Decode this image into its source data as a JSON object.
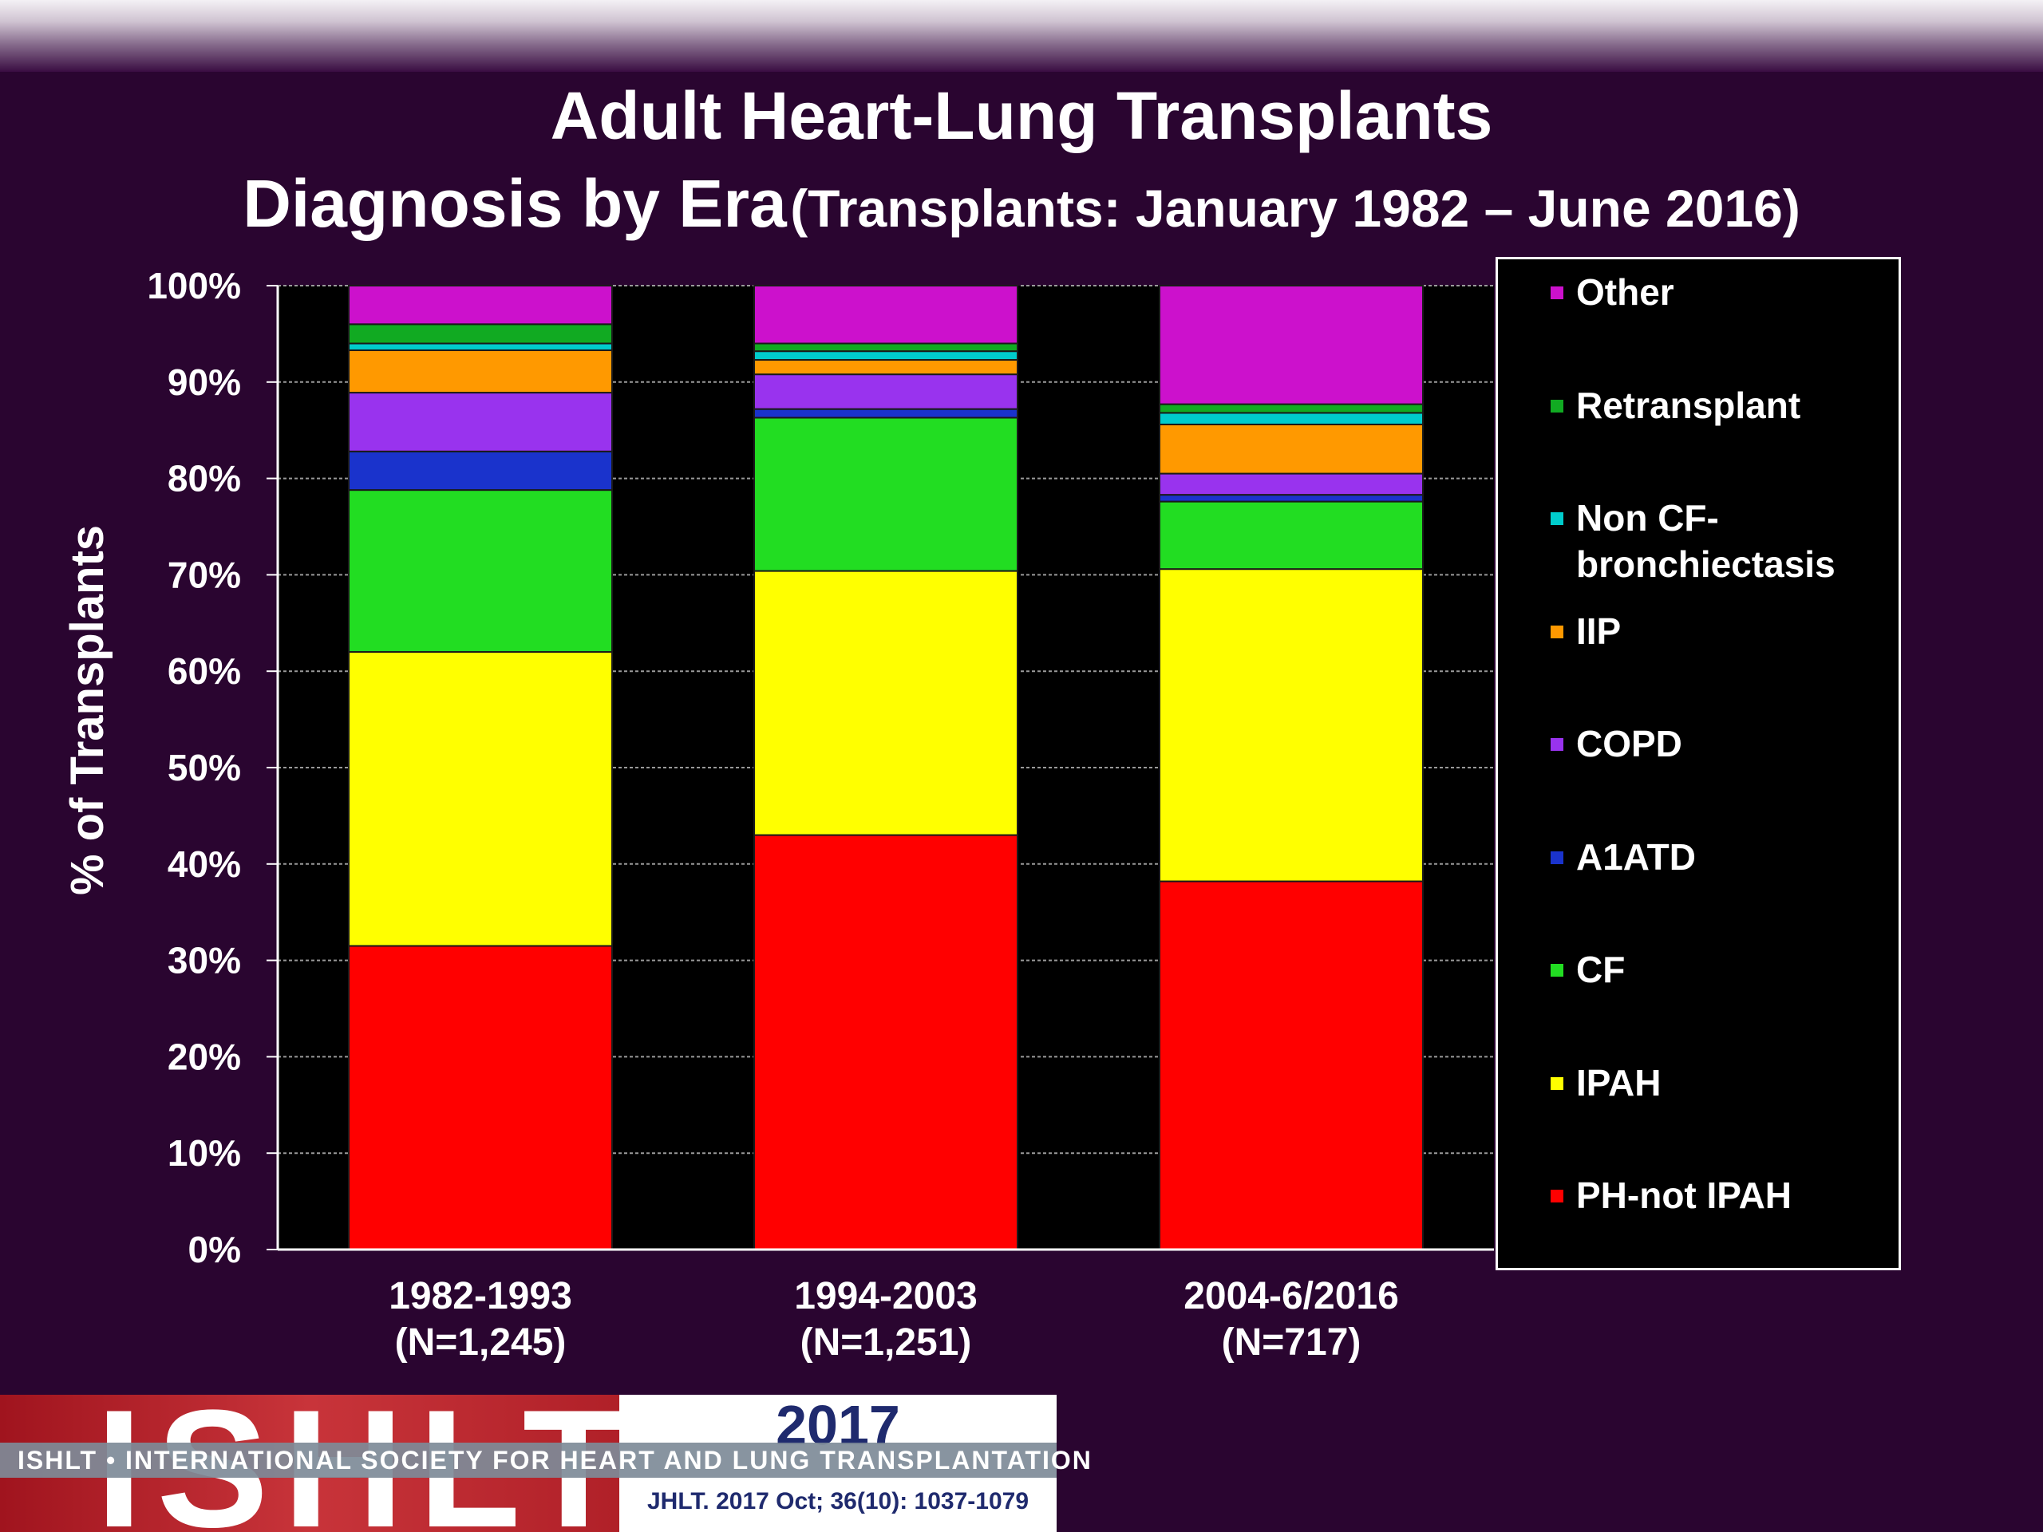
{
  "title_line1": "Adult Heart-Lung Transplants",
  "title_line2_main": "Diagnosis by Era",
  "title_line2_sub": "(Transplants: January 1982 – June 2016)",
  "footer": {
    "logo_text": "ISHLT",
    "year": "2017",
    "band_text": "ISHLT • INTERNATIONAL SOCIETY FOR HEART AND LUNG TRANSPLANTATION",
    "citation": "JHLT. 2017 Oct; 36(10): 1037-1079"
  },
  "chart_data": {
    "type": "bar",
    "stacked": true,
    "ylabel": "% of Transplants",
    "ylim": [
      0,
      100
    ],
    "yticks": [
      "0%",
      "10%",
      "20%",
      "30%",
      "40%",
      "50%",
      "60%",
      "70%",
      "80%",
      "90%",
      "100%"
    ],
    "categories": [
      [
        "1982-1993",
        "(N=1,245)"
      ],
      [
        "1994-2003",
        "(N=1,251)"
      ],
      [
        "2004-6/2016",
        "(N=717)"
      ]
    ],
    "series": [
      {
        "name": "PH-not IPAH",
        "color": "#ff0000",
        "values": [
          31.5,
          43.0,
          38.2
        ]
      },
      {
        "name": "IPAH",
        "color": "#ffff00",
        "values": [
          30.5,
          27.4,
          32.4
        ]
      },
      {
        "name": "CF",
        "color": "#22dd22",
        "values": [
          16.8,
          15.9,
          7.0
        ]
      },
      {
        "name": "A1ATD",
        "color": "#1a33cc",
        "values": [
          4.0,
          0.9,
          0.7
        ]
      },
      {
        "name": "COPD",
        "color": "#9933ee",
        "values": [
          6.1,
          3.6,
          2.2
        ]
      },
      {
        "name": "IIP",
        "color": "#ff9900",
        "values": [
          4.4,
          1.5,
          5.1
        ]
      },
      {
        "name": "Non CF-bronchiectasis",
        "color": "#00cccc",
        "values": [
          0.7,
          0.9,
          1.2
        ]
      },
      {
        "name": "Retransplant",
        "color": "#11aa22",
        "values": [
          2.0,
          0.8,
          0.9
        ]
      },
      {
        "name": "Other",
        "color": "#cc11cc",
        "values": [
          4.0,
          6.0,
          12.3
        ]
      }
    ],
    "legend": {
      "position": "right",
      "entries": [
        {
          "lines": [
            "Other"
          ],
          "color": "#cc11cc"
        },
        {
          "lines": [
            "Retransplant"
          ],
          "color": "#11aa22"
        },
        {
          "lines": [
            "Non CF-",
            "bronchiectasis"
          ],
          "color": "#00cccc"
        },
        {
          "lines": [
            "IIP"
          ],
          "color": "#ff9900"
        },
        {
          "lines": [
            "COPD"
          ],
          "color": "#9933ee"
        },
        {
          "lines": [
            "A1ATD"
          ],
          "color": "#1a33cc"
        },
        {
          "lines": [
            "CF"
          ],
          "color": "#22dd22"
        },
        {
          "lines": [
            "IPAH"
          ],
          "color": "#ffff00"
        },
        {
          "lines": [
            "PH-not IPAH"
          ],
          "color": "#ff0000"
        }
      ]
    },
    "grid": true
  }
}
